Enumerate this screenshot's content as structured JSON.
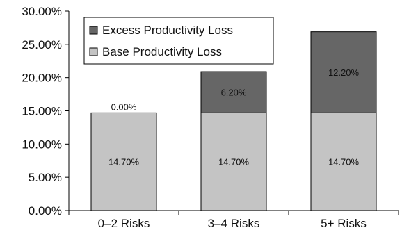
{
  "chart_data": {
    "type": "bar",
    "stacked": true,
    "categories": [
      "0–2 Risks",
      "3–4 Risks",
      "5+ Risks"
    ],
    "series": [
      {
        "name": "Base Productivity Loss",
        "values": [
          14.7,
          14.7,
          14.7
        ],
        "labels": [
          "14.70%",
          "14.70%",
          "14.70%"
        ],
        "color": "#c4c4c4"
      },
      {
        "name": "Excess Productivity Loss",
        "values": [
          0.0,
          6.2,
          12.2
        ],
        "labels": [
          "0.00%",
          "6.20%",
          "12.20%"
        ],
        "color": "#666666"
      }
    ],
    "legend": {
      "position": "top-left",
      "items": [
        {
          "label": "Excess Productivity Loss",
          "color": "#666666"
        },
        {
          "label": "Base Productivity Loss",
          "color": "#c4c4c4"
        }
      ]
    },
    "y_ticks": [
      "0.00%",
      "5.00%",
      "10.00%",
      "15.00%",
      "20.00%",
      "25.00%",
      "30.00%"
    ],
    "ylim": [
      0,
      30
    ],
    "grid": false,
    "title": "",
    "xlabel": "",
    "ylabel": ""
  }
}
